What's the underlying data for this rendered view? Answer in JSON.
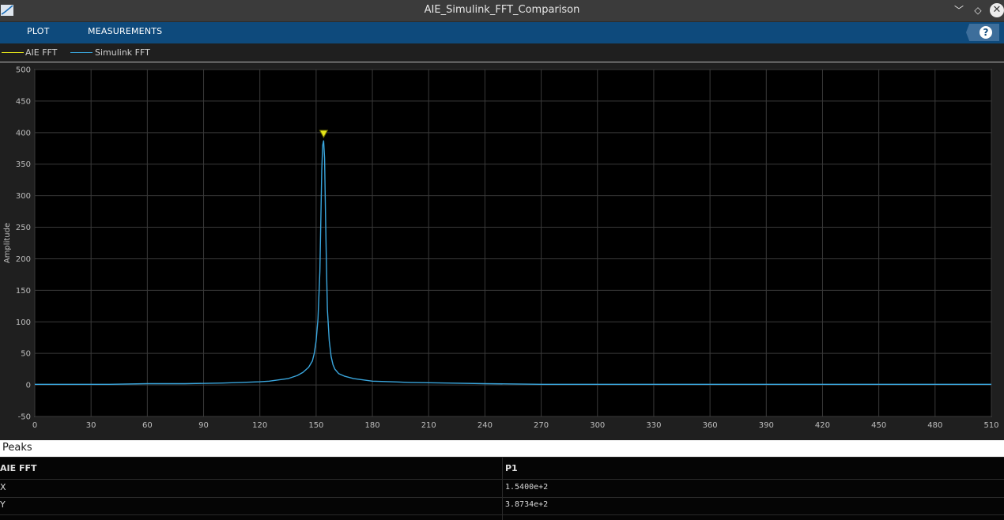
{
  "window": {
    "title": "AIE_Simulink_FFT_Comparison",
    "minimize_glyph": "﹀",
    "restore_glyph": "◇",
    "close_glyph": "✕"
  },
  "toolstrip": {
    "tabs": [
      {
        "label": "PLOT"
      },
      {
        "label": "MEASUREMENTS"
      }
    ],
    "help_label": "?"
  },
  "legend": [
    {
      "label": "AIE FFT",
      "color": "#e6e61a"
    },
    {
      "label": "Simulink FFT",
      "color": "#3aa6dd"
    }
  ],
  "chart_data": {
    "type": "line",
    "ylabel": "Amplitude",
    "xlim": [
      0,
      510
    ],
    "ylim": [
      -50,
      500
    ],
    "x_ticks": [
      "0",
      "30",
      "60",
      "90",
      "120",
      "150",
      "180",
      "210",
      "240",
      "270",
      "300",
      "330",
      "360",
      "390",
      "420",
      "450",
      "480",
      "510"
    ],
    "y_ticks": [
      "500",
      "450",
      "400",
      "350",
      "300",
      "250",
      "200",
      "150",
      "100",
      "50",
      "0",
      "-50"
    ],
    "grid": true,
    "series": [
      {
        "name": "Simulink FFT",
        "color": "#3aa6dd",
        "x": [
          0,
          20,
          40,
          60,
          80,
          100,
          110,
          120,
          125,
          130,
          135,
          140,
          143,
          146,
          148,
          149,
          150,
          151,
          152,
          152.5,
          153,
          153.5,
          154,
          154.5,
          155,
          155.5,
          156,
          157,
          158,
          159,
          160,
          162,
          165,
          170,
          175,
          180,
          190,
          200,
          220,
          240,
          270,
          300,
          330,
          360,
          390,
          420,
          450,
          480,
          510
        ],
        "y": [
          1,
          1,
          1,
          2,
          2,
          3,
          4,
          5,
          6,
          8,
          10,
          15,
          20,
          28,
          38,
          50,
          70,
          105,
          180,
          260,
          340,
          380,
          387,
          360,
          270,
          190,
          120,
          70,
          45,
          32,
          25,
          18,
          14,
          10,
          8,
          6,
          5,
          4,
          3,
          2,
          1,
          1,
          1,
          1,
          1,
          1,
          1,
          1,
          1
        ]
      },
      {
        "name": "AIE FFT",
        "color": "#e6e61a",
        "x": [],
        "y": []
      }
    ],
    "peak_marker": {
      "x": 154,
      "y": 387.34,
      "color": "#e6e61a"
    }
  },
  "peaks": {
    "title": "Peaks",
    "header": {
      "name": "AIE FFT",
      "col": "P1"
    },
    "rows": [
      {
        "label": "X",
        "value": "1.5400e+2"
      },
      {
        "label": "Y",
        "value": "3.8734e+2"
      }
    ]
  }
}
